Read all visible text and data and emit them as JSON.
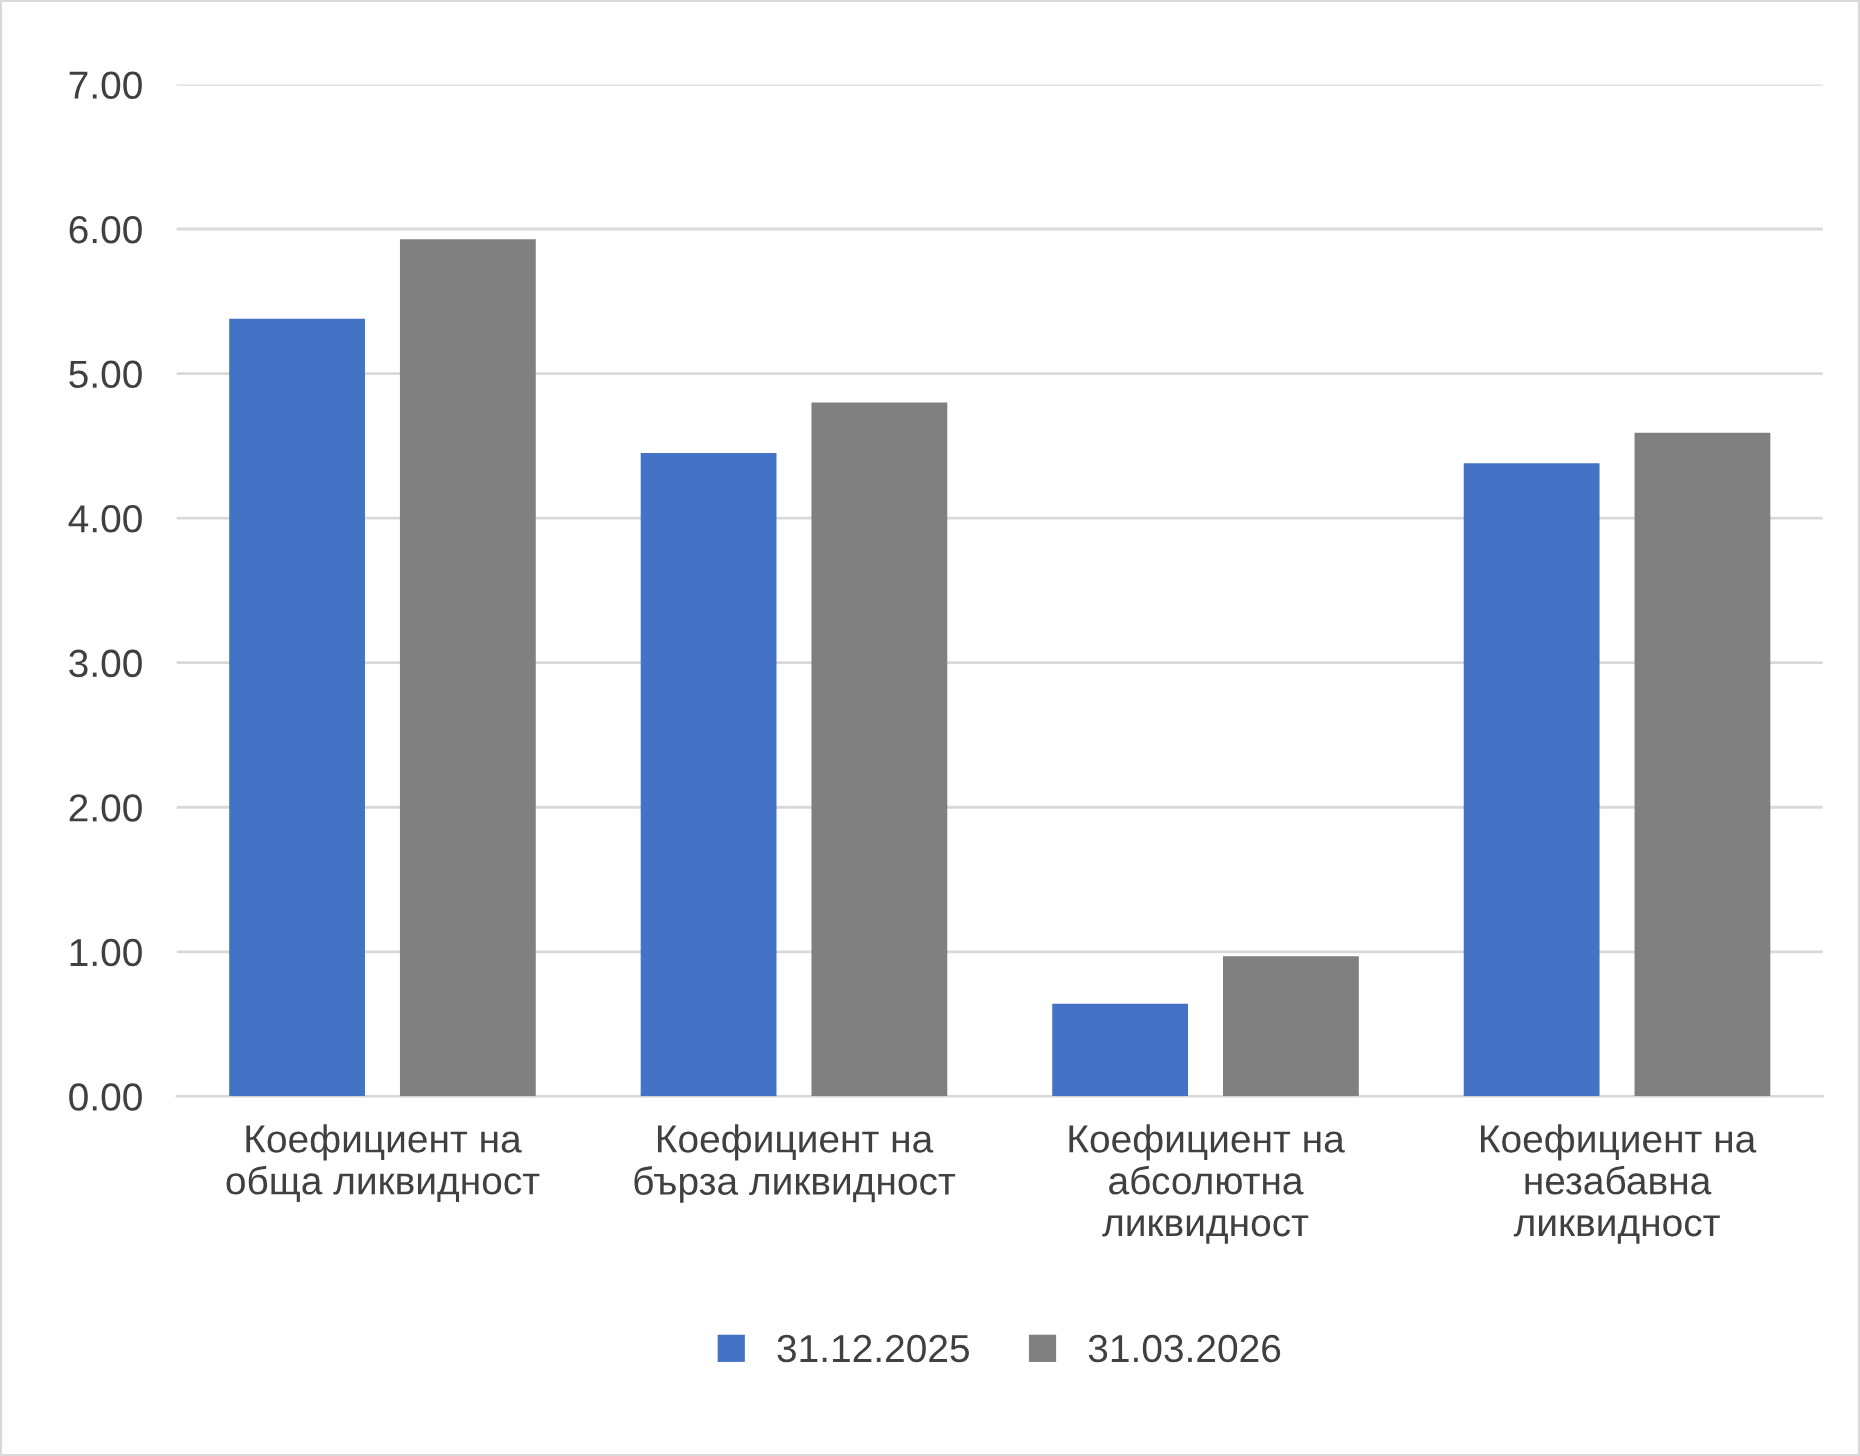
{
  "chart_data": {
    "type": "bar",
    "categories": [
      "Коефициент на\nобща ликвидност",
      "Коефициент на\nбърза ликвидност",
      "Коефициент на\nабсолютна\nликвидност",
      "Коефициент на\nнезабавна\nликвидност"
    ],
    "series": [
      {
        "name": "31.12.2025",
        "color": "#4472c4",
        "values": [
          5.38,
          4.45,
          0.64,
          4.38
        ]
      },
      {
        "name": "31.03.2026",
        "color": "#808080",
        "values": [
          5.93,
          4.8,
          0.97,
          4.59
        ]
      }
    ],
    "ylim": [
      0,
      7
    ],
    "yticks": [
      {
        "value": 0,
        "label": "0.00"
      },
      {
        "value": 1,
        "label": "1.00"
      },
      {
        "value": 2,
        "label": "2.00"
      },
      {
        "value": 3,
        "label": "3.00"
      },
      {
        "value": 4,
        "label": "4.00"
      },
      {
        "value": 5,
        "label": "5.00"
      },
      {
        "value": 6,
        "label": "6.00"
      },
      {
        "value": 7,
        "label": "7.00"
      }
    ],
    "grid": "y",
    "legend": "bottom"
  }
}
